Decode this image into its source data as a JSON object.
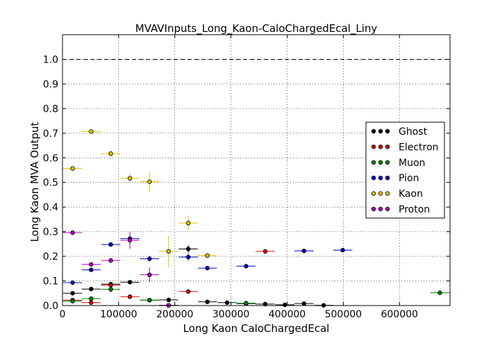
{
  "chart_data": {
    "type": "scatter",
    "title": "MVAVInputs_Long_Kaon-CaloChargedEcal_Liny",
    "xlabel": "Long Kaon CaloChargedEcal",
    "ylabel": "Long Kaon MVA Output",
    "xlim": [
      0,
      690000
    ],
    "ylim": [
      0,
      1.1
    ],
    "x_ticks": [
      0,
      100000,
      200000,
      300000,
      400000,
      500000,
      600000
    ],
    "x_tick_labels": [
      "0",
      "100000",
      "200000",
      "300000",
      "400000",
      "500000",
      "600000"
    ],
    "y_ticks": [
      0.0,
      0.1,
      0.2,
      0.3,
      0.4,
      0.5,
      0.6,
      0.7,
      0.8,
      0.9,
      1.0
    ],
    "y_tick_labels": [
      "0.0",
      "0.1",
      "0.2",
      "0.3",
      "0.4",
      "0.5",
      "0.6",
      "0.7",
      "0.8",
      "0.9",
      "1.0"
    ],
    "reference_line": {
      "y": 1.0,
      "style": "dashed"
    },
    "grid": true,
    "legend_position": "right",
    "series": [
      {
        "name": "Ghost",
        "color": "#000000",
        "x": [
          18000,
          51000,
          86000,
          120000,
          155000,
          189000,
          224000,
          258000,
          293000,
          327000,
          361000,
          396000,
          430000,
          465000
        ],
        "y": [
          0.05,
          0.067,
          0.087,
          0.095,
          0.022,
          0.023,
          0.23,
          0.015,
          0.012,
          0.008,
          0.006,
          0.003,
          0.008,
          0.001
        ],
        "xerr": [
          17000,
          17000,
          17000,
          17000,
          17000,
          17000,
          17000,
          17000,
          17000,
          17000,
          17000,
          17000,
          17000,
          17000
        ],
        "yerr": [
          0.004,
          0.005,
          0.006,
          0.008,
          0.004,
          0.006,
          0.015,
          0.003,
          0.003,
          0.002,
          0.002,
          0.001,
          0.003,
          0.001
        ]
      },
      {
        "name": "Electron",
        "color": "#d00000",
        "x": [
          18000,
          51000,
          86000,
          120000,
          189000,
          224000,
          361000
        ],
        "y": [
          0.022,
          0.012,
          0.083,
          0.036,
          0.001,
          0.057,
          0.22
        ],
        "xerr": [
          17000,
          17000,
          17000,
          17000,
          17000,
          17000,
          17000
        ],
        "yerr": [
          0.004,
          0.003,
          0.008,
          0.005,
          0.001,
          0.006,
          0.008
        ]
      },
      {
        "name": "Muon",
        "color": "#008000",
        "x": [
          18000,
          51000,
          86000,
          155000,
          327000,
          672000
        ],
        "y": [
          0.018,
          0.028,
          0.066,
          0.022,
          0.01,
          0.052
        ],
        "xerr": [
          17000,
          17000,
          17000,
          17000,
          17000,
          17000
        ],
        "yerr": [
          0.004,
          0.005,
          0.012,
          0.004,
          0.003,
          0.005
        ]
      },
      {
        "name": "Pion",
        "color": "#0000c0",
        "x": [
          18000,
          51000,
          86000,
          120000,
          155000,
          224000,
          258000,
          327000,
          430000,
          499000
        ],
        "y": [
          0.093,
          0.145,
          0.248,
          0.272,
          0.19,
          0.197,
          0.152,
          0.16,
          0.222,
          0.225
        ],
        "xerr": [
          17000,
          17000,
          17000,
          17000,
          17000,
          17000,
          17000,
          17000,
          17000,
          17000
        ],
        "yerr": [
          0.005,
          0.006,
          0.008,
          0.01,
          0.01,
          0.014,
          0.006,
          0.006,
          0.005,
          0.005
        ]
      },
      {
        "name": "Kaon",
        "color": "#e0c000",
        "x": [
          18000,
          51000,
          86000,
          120000,
          155000,
          189000,
          224000,
          258000
        ],
        "y": [
          0.557,
          0.707,
          0.617,
          0.517,
          0.503,
          0.22,
          0.335,
          0.203
        ],
        "xerr": [
          17000,
          17000,
          17000,
          17000,
          17000,
          17000,
          17000,
          17000
        ],
        "yerr": [
          0.006,
          0.008,
          0.01,
          0.015,
          0.04,
          0.065,
          0.03,
          0.01
        ]
      },
      {
        "name": "Proton",
        "color": "#b000b0",
        "x": [
          18000,
          51000,
          86000,
          120000,
          155000,
          189000
        ],
        "y": [
          0.296,
          0.167,
          0.183,
          0.265,
          0.125,
          0.001
        ],
        "xerr": [
          17000,
          17000,
          17000,
          17000,
          17000,
          17000
        ],
        "yerr": [
          0.006,
          0.008,
          0.008,
          0.035,
          0.03,
          0.005
        ]
      }
    ]
  }
}
